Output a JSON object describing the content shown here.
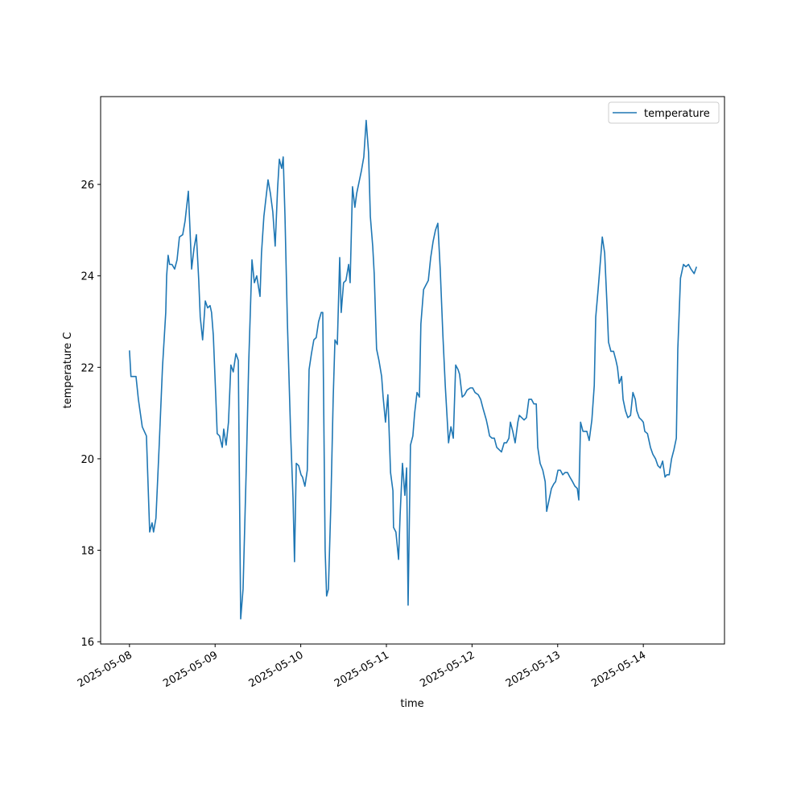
{
  "chart_data": {
    "type": "line",
    "xlabel": "time",
    "ylabel": "temperature C",
    "x": [
      "2025-05-08 00:00",
      "2025-05-08 00:25",
      "2025-05-08 01:50",
      "2025-05-08 02:30",
      "2025-05-08 03:35",
      "2025-05-08 04:45",
      "2025-05-08 05:40",
      "2025-05-08 06:20",
      "2025-05-08 06:45",
      "2025-05-08 07:25",
      "2025-05-08 08:20",
      "2025-05-08 09:15",
      "2025-05-08 10:10",
      "2025-05-08 10:25",
      "2025-05-08 10:50",
      "2025-05-08 11:15",
      "2025-05-08 11:55",
      "2025-05-08 12:40",
      "2025-05-08 13:20",
      "2025-05-08 14:00",
      "2025-05-08 14:55",
      "2025-05-08 15:35",
      "2025-05-08 16:30",
      "2025-05-08 16:55",
      "2025-05-08 17:25",
      "2025-05-08 18:05",
      "2025-05-08 18:45",
      "2025-05-08 19:25",
      "2025-05-08 19:50",
      "2025-05-08 20:30",
      "2025-05-08 21:15",
      "2025-05-08 21:55",
      "2025-05-08 22:35",
      "2025-05-08 23:00",
      "2025-05-08 23:30",
      "2025-05-09 00:10",
      "2025-05-09 00:35",
      "2025-05-09 01:15",
      "2025-05-09 02:00",
      "2025-05-09 02:25",
      "2025-05-09 03:05",
      "2025-05-09 03:45",
      "2025-05-09 04:25",
      "2025-05-09 05:05",
      "2025-05-09 05:50",
      "2025-05-09 06:30",
      "2025-05-09 07:10",
      "2025-05-09 07:50",
      "2025-05-09 08:45",
      "2025-05-09 09:25",
      "2025-05-09 10:20",
      "2025-05-09 11:00",
      "2025-05-09 11:40",
      "2025-05-09 12:35",
      "2025-05-09 13:00",
      "2025-05-09 13:40",
      "2025-05-09 14:50",
      "2025-05-09 15:30",
      "2025-05-09 16:10",
      "2025-05-09 16:50",
      "2025-05-09 17:30",
      "2025-05-09 18:00",
      "2025-05-09 18:40",
      "2025-05-09 19:05",
      "2025-05-09 19:35",
      "2025-05-09 20:15",
      "2025-05-09 21:10",
      "2025-05-09 21:50",
      "2025-05-09 22:15",
      "2025-05-09 22:45",
      "2025-05-09 23:25",
      "2025-05-10 00:05",
      "2025-05-10 00:30",
      "2025-05-10 01:10",
      "2025-05-10 01:50",
      "2025-05-10 02:20",
      "2025-05-10 03:00",
      "2025-05-10 03:40",
      "2025-05-10 04:20",
      "2025-05-10 05:00",
      "2025-05-10 05:45",
      "2025-05-10 06:10",
      "2025-05-10 06:50",
      "2025-05-10 07:15",
      "2025-05-10 07:45",
      "2025-05-10 08:25",
      "2025-05-10 09:05",
      "2025-05-10 09:35",
      "2025-05-10 10:15",
      "2025-05-10 10:55",
      "2025-05-10 11:20",
      "2025-05-10 12:00",
      "2025-05-10 12:40",
      "2025-05-10 13:25",
      "2025-05-10 13:50",
      "2025-05-10 14:30",
      "2025-05-10 15:10",
      "2025-05-10 15:40",
      "2025-05-10 16:20",
      "2025-05-10 17:00",
      "2025-05-10 17:40",
      "2025-05-10 18:20",
      "2025-05-10 19:00",
      "2025-05-10 19:30",
      "2025-05-10 20:10",
      "2025-05-10 20:35",
      "2025-05-10 21:15",
      "2025-05-10 21:55",
      "2025-05-10 22:40",
      "2025-05-10 23:05",
      "2025-05-10 23:45",
      "2025-05-11 00:25",
      "2025-05-11 01:10",
      "2025-05-11 01:50",
      "2025-05-11 02:00",
      "2025-05-11 02:40",
      "2025-05-11 03:25",
      "2025-05-11 03:50",
      "2025-05-11 04:30",
      "2025-05-11 05:10",
      "2025-05-11 05:40",
      "2025-05-11 06:05",
      "2025-05-11 06:45",
      "2025-05-11 07:25",
      "2025-05-11 07:55",
      "2025-05-11 08:35",
      "2025-05-11 09:15",
      "2025-05-11 09:40",
      "2025-05-11 10:25",
      "2025-05-11 11:05",
      "2025-05-11 11:45",
      "2025-05-11 12:25",
      "2025-05-11 13:05",
      "2025-05-11 13:45",
      "2025-05-11 14:25",
      "2025-05-11 15:05",
      "2025-05-11 15:50",
      "2025-05-11 16:30",
      "2025-05-11 17:25",
      "2025-05-11 18:05",
      "2025-05-11 18:45",
      "2025-05-11 19:25",
      "2025-05-11 20:05",
      "2025-05-11 20:30",
      "2025-05-11 21:15",
      "2025-05-11 21:55",
      "2025-05-11 22:35",
      "2025-05-11 23:30",
      "2025-05-12 00:10",
      "2025-05-12 00:50",
      "2025-05-12 01:45",
      "2025-05-12 02:25",
      "2025-05-12 03:05",
      "2025-05-12 04:00",
      "2025-05-12 04:25",
      "2025-05-12 04:55",
      "2025-05-12 05:35",
      "2025-05-12 06:15",
      "2025-05-12 06:55",
      "2025-05-12 07:35",
      "2025-05-12 08:15",
      "2025-05-12 09:00",
      "2025-05-12 09:40",
      "2025-05-12 10:20",
      "2025-05-12 10:45",
      "2025-05-12 11:25",
      "2025-05-12 12:05",
      "2025-05-12 12:50",
      "2025-05-12 13:15",
      "2025-05-12 13:55",
      "2025-05-12 14:35",
      "2025-05-12 15:15",
      "2025-05-12 15:55",
      "2025-05-12 16:40",
      "2025-05-12 17:20",
      "2025-05-12 18:00",
      "2025-05-12 18:25",
      "2025-05-12 19:05",
      "2025-05-12 19:50",
      "2025-05-12 20:30",
      "2025-05-12 20:55",
      "2025-05-12 21:35",
      "2025-05-12 22:15",
      "2025-05-12 22:55",
      "2025-05-12 23:25",
      "2025-05-13 00:05",
      "2025-05-13 00:45",
      "2025-05-13 01:25",
      "2025-05-13 02:05",
      "2025-05-13 02:45",
      "2025-05-13 03:25",
      "2025-05-13 04:10",
      "2025-05-13 04:50",
      "2025-05-13 05:30",
      "2025-05-13 05:55",
      "2025-05-13 06:25",
      "2025-05-13 07:05",
      "2025-05-13 08:10",
      "2025-05-13 08:50",
      "2025-05-13 09:35",
      "2025-05-13 10:15",
      "2025-05-13 10:40",
      "2025-05-13 11:20",
      "2025-05-13 12:00",
      "2025-05-13 12:30",
      "2025-05-13 13:10",
      "2025-05-13 13:50",
      "2025-05-13 14:15",
      "2025-05-13 14:55",
      "2025-05-13 15:40",
      "2025-05-13 16:20",
      "2025-05-13 16:45",
      "2025-05-13 17:15",
      "2025-05-13 17:55",
      "2025-05-13 18:20",
      "2025-05-13 19:00",
      "2025-05-13 19:40",
      "2025-05-13 20:25",
      "2025-05-13 21:05",
      "2025-05-13 21:45",
      "2025-05-13 22:10",
      "2025-05-13 22:50",
      "2025-05-13 23:30",
      "2025-05-14 00:00",
      "2025-05-14 00:25",
      "2025-05-14 01:10",
      "2025-05-14 01:35",
      "2025-05-14 02:00",
      "2025-05-14 02:40",
      "2025-05-14 03:25",
      "2025-05-14 04:05",
      "2025-05-14 04:45",
      "2025-05-14 05:25",
      "2025-05-14 06:05",
      "2025-05-14 06:35",
      "2025-05-14 07:15",
      "2025-05-14 07:55",
      "2025-05-14 08:35",
      "2025-05-14 09:15",
      "2025-05-14 09:40",
      "2025-05-14 10:25",
      "2025-05-14 11:15",
      "2025-05-14 11:55",
      "2025-05-14 12:40",
      "2025-05-14 13:20",
      "2025-05-14 14:15",
      "2025-05-14 14:55"
    ],
    "series": [
      {
        "name": "temperature",
        "color": "#1f77b4",
        "values": [
          22.37,
          21.8,
          21.8,
          21.3,
          20.7,
          20.5,
          18.4,
          18.6,
          18.4,
          18.7,
          20.3,
          22.0,
          23.2,
          24.0,
          24.45,
          24.25,
          24.25,
          24.15,
          24.35,
          24.85,
          24.9,
          25.2,
          25.85,
          25.1,
          24.15,
          24.6,
          24.9,
          23.9,
          23.1,
          22.6,
          23.45,
          23.3,
          23.35,
          23.2,
          22.7,
          21.4,
          20.55,
          20.5,
          20.25,
          20.65,
          20.3,
          20.8,
          22.05,
          21.9,
          22.3,
          22.15,
          16.5,
          17.15,
          19.85,
          22.1,
          24.35,
          23.85,
          24.0,
          23.55,
          24.5,
          25.3,
          26.1,
          25.8,
          25.4,
          24.65,
          25.9,
          26.55,
          26.35,
          26.6,
          25.3,
          23.0,
          20.55,
          19.15,
          17.75,
          19.9,
          19.85,
          19.65,
          19.6,
          19.4,
          19.75,
          21.95,
          22.3,
          22.6,
          22.65,
          23.0,
          23.2,
          23.2,
          18.0,
          17.0,
          17.15,
          18.95,
          21.3,
          22.6,
          22.5,
          24.4,
          23.2,
          23.85,
          23.9,
          24.25,
          23.85,
          25.95,
          25.5,
          25.8,
          26.05,
          26.3,
          26.6,
          27.4,
          26.7,
          25.3,
          24.65,
          24.05,
          22.4,
          22.15,
          21.8,
          21.35,
          20.8,
          21.4,
          19.7,
          19.3,
          18.5,
          18.4,
          17.8,
          18.75,
          19.9,
          19.2,
          19.8,
          16.8,
          20.3,
          20.5,
          21.0,
          21.45,
          21.35,
          22.95,
          23.7,
          23.8,
          23.9,
          24.4,
          24.75,
          25.0,
          25.15,
          24.15,
          22.7,
          21.6,
          20.35,
          20.7,
          20.45,
          22.05,
          21.95,
          21.85,
          21.35,
          21.4,
          21.5,
          21.55,
          21.55,
          21.45,
          21.4,
          21.3,
          21.1,
          20.85,
          20.7,
          20.5,
          20.45,
          20.45,
          20.25,
          20.2,
          20.15,
          20.35,
          20.35,
          20.45,
          20.8,
          20.6,
          20.35,
          20.8,
          20.95,
          20.9,
          20.85,
          20.9,
          21.3,
          21.3,
          21.2,
          21.2,
          20.25,
          19.9,
          19.75,
          19.5,
          18.85,
          19.1,
          19.35,
          19.45,
          19.5,
          19.75,
          19.75,
          19.65,
          19.7,
          19.7,
          19.6,
          19.5,
          19.4,
          19.35,
          19.1,
          20.8,
          20.6,
          20.6,
          20.4,
          20.85,
          21.6,
          23.1,
          23.7,
          24.35,
          24.85,
          24.5,
          23.35,
          22.55,
          22.35,
          22.35,
          22.15,
          22.0,
          21.65,
          21.8,
          21.3,
          21.05,
          20.9,
          20.95,
          21.45,
          21.3,
          21.05,
          20.9,
          20.85,
          20.8,
          20.6,
          20.55,
          20.4,
          20.25,
          20.1,
          20.0,
          19.85,
          19.8,
          19.95,
          19.6,
          19.65,
          19.65,
          20.0,
          20.2,
          20.45,
          22.4,
          23.95,
          24.25,
          24.2,
          24.25,
          24.15,
          24.05,
          24.2
        ]
      }
    ],
    "xlim": [
      "2025-05-07 15:55",
      "2025-05-14 22:45"
    ],
    "xticks": [
      "2025-05-08",
      "2025-05-09",
      "2025-05-10",
      "2025-05-11",
      "2025-05-12",
      "2025-05-13",
      "2025-05-14"
    ],
    "ylim": [
      15.95,
      27.92
    ],
    "yticks": [
      16,
      18,
      20,
      22,
      24,
      26
    ],
    "grid": false,
    "legend": "upper right"
  }
}
